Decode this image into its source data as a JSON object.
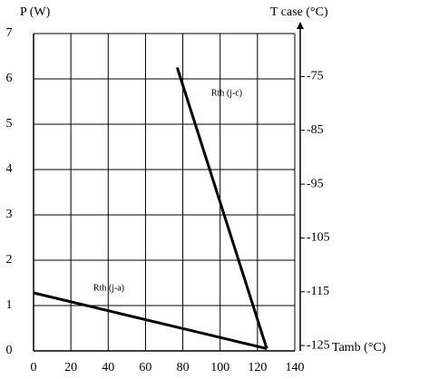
{
  "chart_data": {
    "type": "line",
    "ylabel": "P (W)",
    "y2label": "T case (°C)",
    "xlabel": "Tamb (°C)",
    "xlim": [
      0,
      140
    ],
    "xticks": [
      0,
      20,
      40,
      60,
      80,
      100,
      120,
      140
    ],
    "ylim": [
      0,
      7
    ],
    "yticks": [
      0,
      1,
      2,
      3,
      4,
      5,
      6,
      7
    ],
    "y2lim": [
      -126,
      -67
    ],
    "y2ticks": [
      -75,
      -85,
      -95,
      -105,
      -115,
      -125
    ],
    "grid": true,
    "series": [
      {
        "name": "Rth (j-c)",
        "color": "#000000",
        "x": [
          77,
          125
        ],
        "values": [
          6.25,
          0.05
        ]
      },
      {
        "name": "Rth (j-a)",
        "color": "#000000",
        "x": [
          0,
          125
        ],
        "values": [
          1.28,
          0.05
        ]
      }
    ]
  }
}
